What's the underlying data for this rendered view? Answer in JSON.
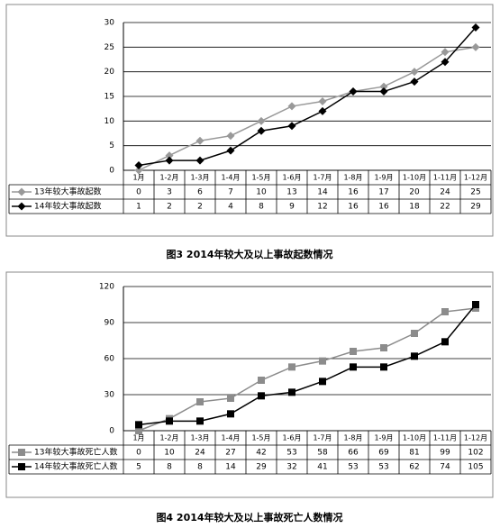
{
  "chart_data": [
    {
      "type": "line",
      "title": "图3  2014年较大及以上事故起数情况",
      "categories": [
        "1月",
        "1-2月",
        "1-3月",
        "1-4月",
        "1-5月",
        "1-6月",
        "1-7月",
        "1-8月",
        "1-9月",
        "1-10月",
        "1-11月",
        "1-12月"
      ],
      "marker": "diamond",
      "grid": true,
      "series": [
        {
          "name": "13年较大事故起数",
          "color": "#999999",
          "values": [
            0,
            3,
            6,
            7,
            10,
            13,
            14,
            16,
            17,
            20,
            24,
            25
          ]
        },
        {
          "name": "14年较大事故起数",
          "color": "#000000",
          "values": [
            1,
            2,
            2,
            4,
            8,
            9,
            12,
            16,
            16,
            18,
            22,
            29
          ]
        }
      ],
      "ylim": [
        0,
        30
      ],
      "yticks": [
        0,
        5,
        10,
        15,
        20,
        25,
        30
      ]
    },
    {
      "type": "line",
      "title": "图4  2014年较大及以上事故死亡人数情况",
      "categories": [
        "1月",
        "1-2月",
        "1-3月",
        "1-4月",
        "1-5月",
        "1-6月",
        "1-7月",
        "1-8月",
        "1-9月",
        "1-10月",
        "1-11月",
        "1-12月"
      ],
      "marker": "square",
      "grid": true,
      "series": [
        {
          "name": "13年较大事故死亡人数",
          "color": "#8c8c8c",
          "values": [
            0,
            10,
            24,
            27,
            42,
            53,
            58,
            66,
            69,
            81,
            99,
            102
          ]
        },
        {
          "name": "14年较大事故死亡人数",
          "color": "#000000",
          "values": [
            5,
            8,
            8,
            14,
            29,
            32,
            41,
            53,
            53,
            62,
            74,
            105
          ]
        }
      ],
      "ylim": [
        0,
        120
      ],
      "yticks": [
        0,
        30,
        60,
        90,
        120
      ]
    }
  ]
}
